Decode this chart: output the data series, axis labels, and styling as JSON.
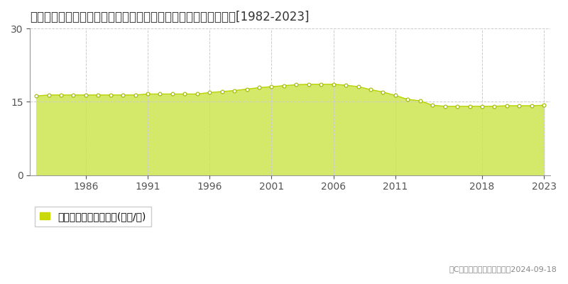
{
  "title": "青森県八戸市大字尻内町字表河原１５番１　公示地価　地価推移[1982-2023]",
  "years": [
    1982,
    1983,
    1984,
    1985,
    1986,
    1987,
    1988,
    1989,
    1990,
    1991,
    1992,
    1993,
    1994,
    1995,
    1996,
    1997,
    1998,
    1999,
    2000,
    2001,
    2002,
    2003,
    2004,
    2005,
    2006,
    2007,
    2008,
    2009,
    2010,
    2011,
    2012,
    2013,
    2014,
    2015,
    2016,
    2017,
    2018,
    2019,
    2020,
    2021,
    2022,
    2023
  ],
  "values": [
    16.2,
    16.4,
    16.4,
    16.4,
    16.4,
    16.4,
    16.4,
    16.4,
    16.4,
    16.6,
    16.6,
    16.6,
    16.6,
    16.6,
    16.9,
    17.1,
    17.3,
    17.6,
    17.9,
    18.1,
    18.3,
    18.5,
    18.6,
    18.6,
    18.6,
    18.4,
    18.1,
    17.5,
    17.0,
    16.3,
    15.5,
    15.2,
    14.3,
    14.1,
    14.1,
    14.1,
    14.1,
    14.1,
    14.2,
    14.2,
    14.2,
    14.3
  ],
  "fill_color": "#d4e96a",
  "line_color": "#b8d400",
  "marker_facecolor": "#ffffff",
  "marker_edgecolor": "#a0b800",
  "background_color": "#ffffff",
  "plot_bg_color": "#ffffff",
  "grid_color": "#cccccc",
  "ylim": [
    0,
    30
  ],
  "yticks": [
    0,
    15,
    30
  ],
  "xtick_years": [
    1986,
    1991,
    1996,
    2001,
    2006,
    2011,
    2018,
    2023
  ],
  "legend_label": "公示地価　平均坪単価(万円/坪)",
  "legend_square_color": "#c8d800",
  "copyright_text": "（C）土地価格ドットコム　2024-09-18",
  "title_fontsize": 12,
  "tick_fontsize": 10,
  "legend_fontsize": 10,
  "copyright_fontsize": 8
}
